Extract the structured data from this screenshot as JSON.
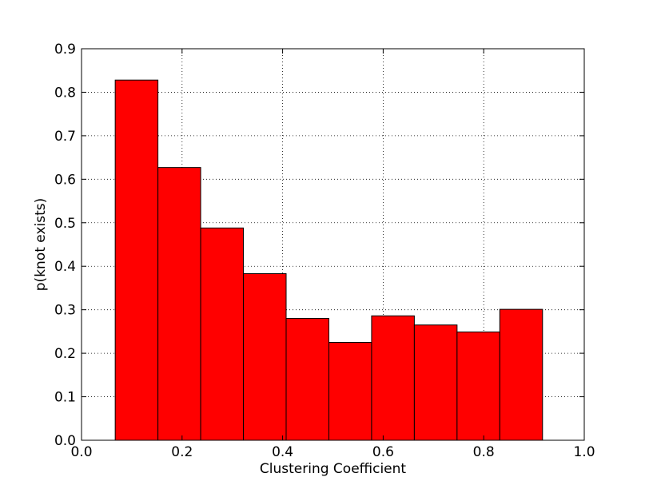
{
  "chart_data": {
    "type": "bar",
    "bins": [
      {
        "x0": 0.067,
        "x1": 0.152,
        "value": 0.828
      },
      {
        "x0": 0.152,
        "x1": 0.237,
        "value": 0.627
      },
      {
        "x0": 0.237,
        "x1": 0.322,
        "value": 0.488
      },
      {
        "x0": 0.322,
        "x1": 0.407,
        "value": 0.383
      },
      {
        "x0": 0.407,
        "x1": 0.492,
        "value": 0.28
      },
      {
        "x0": 0.492,
        "x1": 0.577,
        "value": 0.225
      },
      {
        "x0": 0.577,
        "x1": 0.662,
        "value": 0.286
      },
      {
        "x0": 0.662,
        "x1": 0.747,
        "value": 0.265
      },
      {
        "x0": 0.747,
        "x1": 0.832,
        "value": 0.249
      },
      {
        "x0": 0.832,
        "x1": 0.917,
        "value": 0.301
      }
    ],
    "xlabel": "Clustering Coefficient",
    "ylabel": "p(knot exists)",
    "xlim": [
      0.0,
      1.0
    ],
    "ylim": [
      0.0,
      0.9
    ],
    "xticks": [
      "0.0",
      "0.2",
      "0.4",
      "0.6",
      "0.8",
      "1.0"
    ],
    "yticks": [
      "0.0",
      "0.1",
      "0.2",
      "0.3",
      "0.4",
      "0.5",
      "0.6",
      "0.7",
      "0.8",
      "0.9"
    ],
    "grid": true,
    "bar_color": "#ff0000",
    "edge_color": "#000000"
  }
}
